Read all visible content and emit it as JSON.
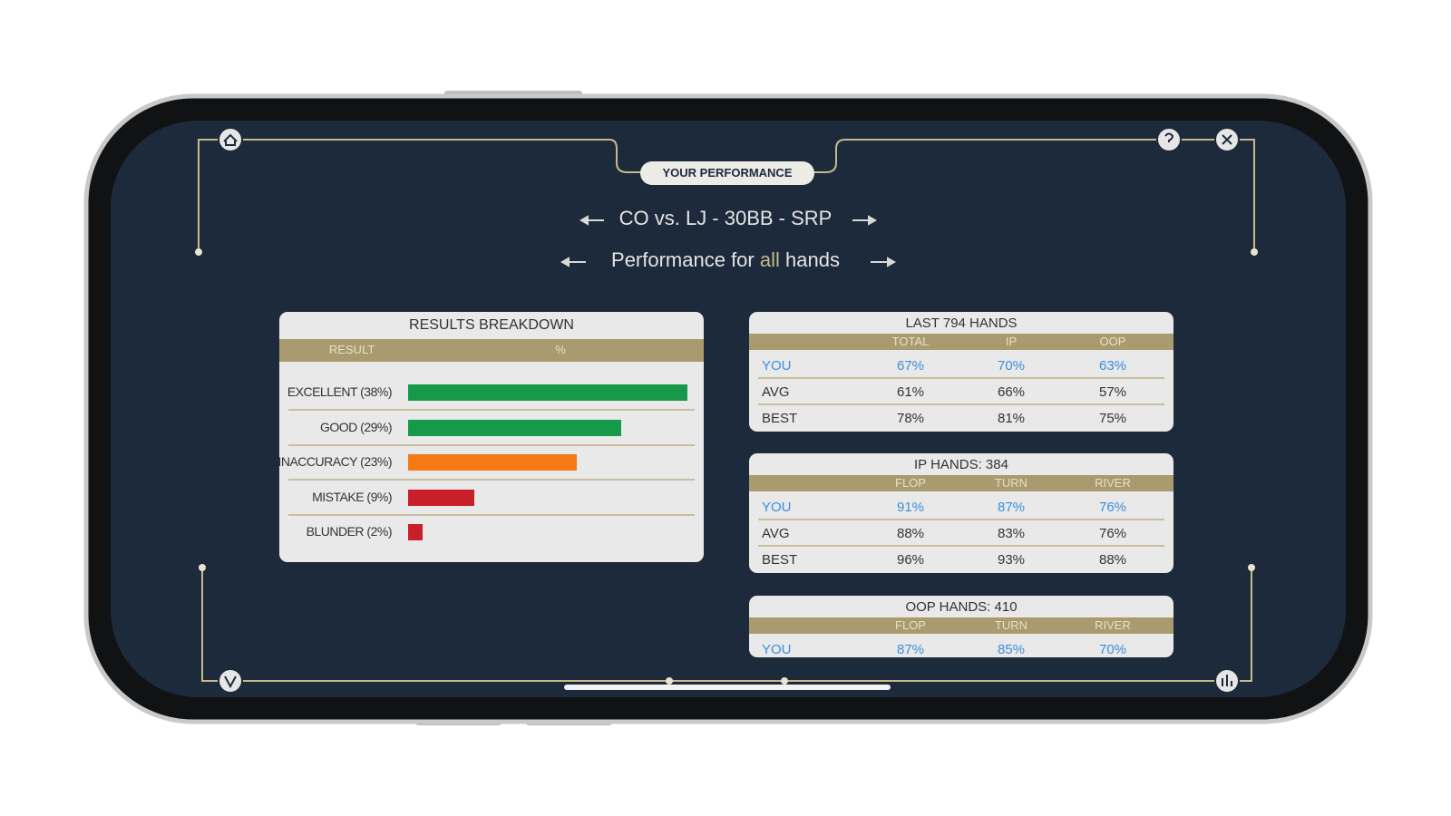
{
  "header": {
    "badge": "YOUR PERFORMANCE",
    "spot": "CO vs. LJ - 30BB - SRP",
    "subtitle": [
      "Performance for",
      "all",
      "hands"
    ]
  },
  "results": {
    "title": "RESULTS BREAKDOWN",
    "columns": [
      "RESULT",
      "%"
    ],
    "rows": [
      {
        "label": "EXCELLENT (38%)",
        "value": 38,
        "color": "#17994a"
      },
      {
        "label": "GOOD (29%)",
        "value": 29,
        "color": "#17994a"
      },
      {
        "label": "INACCURACY (23%)",
        "value": 23,
        "color": "#f57a14"
      },
      {
        "label": "MISTAKE (9%)",
        "value": 9,
        "color": "#c8202a"
      },
      {
        "label": "BLUNDER (2%)",
        "value": 2,
        "color": "#c8202a"
      }
    ]
  },
  "tables": [
    {
      "title": "LAST 794 HANDS",
      "columns": [
        "TOTAL",
        "IP",
        "OOP"
      ],
      "rows": [
        {
          "label": "YOU",
          "cells": [
            "67%",
            "70%",
            "63%"
          ]
        },
        {
          "label": "AVG",
          "cells": [
            "61%",
            "66%",
            "57%"
          ]
        },
        {
          "label": "BEST",
          "cells": [
            "78%",
            "81%",
            "75%"
          ]
        }
      ]
    },
    {
      "title": "IP HANDS: 384",
      "columns": [
        "FLOP",
        "TURN",
        "RIVER"
      ],
      "rows": [
        {
          "label": "YOU",
          "cells": [
            "91%",
            "87%",
            "76%"
          ]
        },
        {
          "label": "AVG",
          "cells": [
            "88%",
            "83%",
            "76%"
          ]
        },
        {
          "label": "BEST",
          "cells": [
            "96%",
            "93%",
            "88%"
          ]
        }
      ]
    },
    {
      "title": "OOP HANDS: 410",
      "columns": [
        "FLOP",
        "TURN",
        "RIVER"
      ],
      "rows": [
        {
          "label": "YOU",
          "cells": [
            "87%",
            "85%",
            "70%"
          ]
        }
      ]
    }
  ]
}
